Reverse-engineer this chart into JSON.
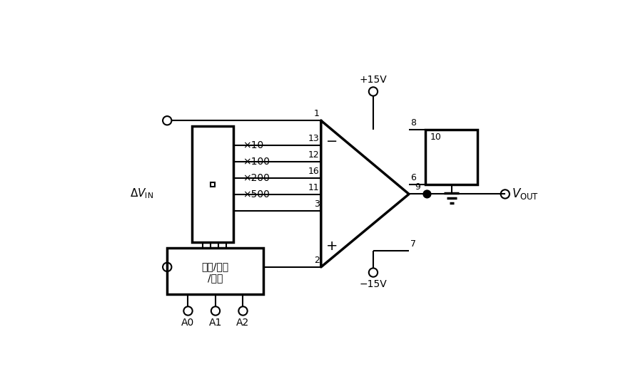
{
  "background_color": "#ffffff",
  "line_color": "#000000",
  "lw": 1.5,
  "tlw": 2.5,
  "gain_labels": [
    "×10",
    "×100",
    "×200",
    "×500"
  ],
  "control_labels": [
    "A0",
    "A1",
    "A2"
  ],
  "vplus_label": "+15V",
  "vminus_label": "−15V",
  "vout_label": "$V_{\\mathrm{OUT}}$",
  "vin_label": "$\\Delta V_{\\mathrm{IN}}$",
  "decoder_line1": "译码/储存",
  "decoder_line2": "/驱动"
}
